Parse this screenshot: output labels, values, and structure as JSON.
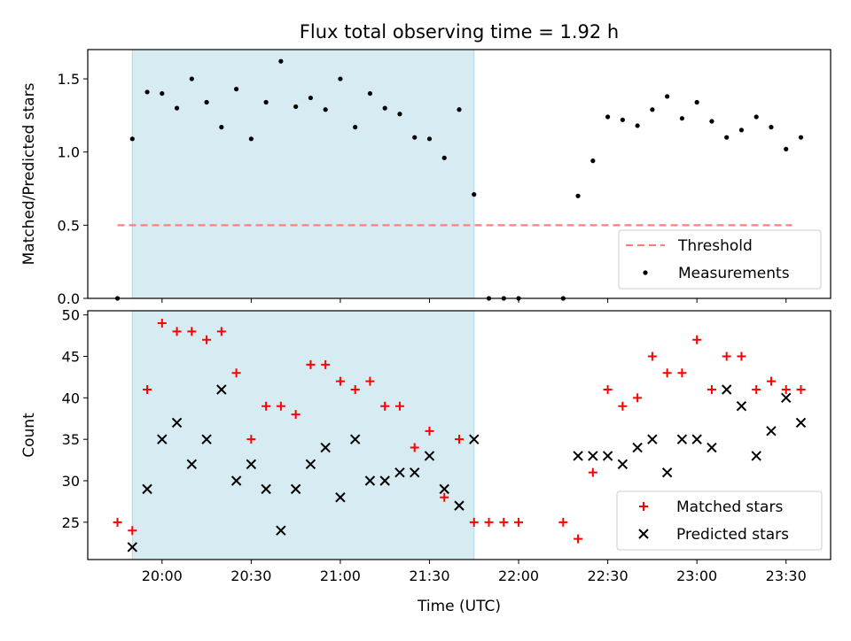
{
  "title": "Flux total observing time = 1.92 h",
  "colors": {
    "shade": "#add8e6",
    "threshold": "#ff7f7f",
    "measurement": "#000000",
    "matched": "#ff0000",
    "predicted": "#000000"
  },
  "chart_data": [
    {
      "type": "scatter",
      "ylabel": "Matched/Predicted stars",
      "ylim": [
        0,
        1.7
      ],
      "yticks": [
        0.0,
        0.5,
        1.0,
        1.5
      ],
      "ytick_labels": [
        "0.0",
        "0.5",
        "1.0",
        "1.5"
      ],
      "xlim": [
        "19:35",
        "23:45"
      ],
      "shaded_span": [
        "19:50",
        "21:45"
      ],
      "threshold": {
        "value": 0.5,
        "x_range": [
          "19:45",
          "23:32"
        ]
      },
      "legend": {
        "position": "lower right",
        "entries": [
          "Threshold",
          "Measurements"
        ]
      },
      "series": [
        {
          "name": "Measurements",
          "x": [
            "19:45",
            "19:50",
            "19:55",
            "20:00",
            "20:05",
            "20:10",
            "20:15",
            "20:20",
            "20:25",
            "20:30",
            "20:35",
            "20:40",
            "20:45",
            "20:50",
            "20:55",
            "21:00",
            "21:05",
            "21:10",
            "21:15",
            "21:20",
            "21:25",
            "21:30",
            "21:35",
            "21:40",
            "21:45",
            "21:50",
            "21:55",
            "22:00",
            "22:15",
            "22:20",
            "22:25",
            "22:30",
            "22:35",
            "22:40",
            "22:45",
            "22:50",
            "22:55",
            "23:00",
            "23:05",
            "23:10",
            "23:15",
            "23:20",
            "23:25",
            "23:30",
            "23:35"
          ],
          "y": [
            0.0,
            1.09,
            1.41,
            1.4,
            1.3,
            1.5,
            1.34,
            1.17,
            1.43,
            1.09,
            1.34,
            1.62,
            1.31,
            1.37,
            1.29,
            1.5,
            1.17,
            1.4,
            1.3,
            1.26,
            1.1,
            1.09,
            0.96,
            1.29,
            0.71,
            0.0,
            0.0,
            0.0,
            0.0,
            0.7,
            0.94,
            1.24,
            1.22,
            1.18,
            1.29,
            1.38,
            1.23,
            1.34,
            1.21,
            1.1,
            1.15,
            1.24,
            1.17,
            1.02,
            1.1
          ]
        }
      ]
    },
    {
      "type": "scatter",
      "xlabel": "Time (UTC)",
      "ylabel": "Count",
      "ylim": [
        20.5,
        50.5
      ],
      "yticks": [
        25,
        30,
        35,
        40,
        45,
        50
      ],
      "ytick_labels": [
        "25",
        "30",
        "35",
        "40",
        "45",
        "50"
      ],
      "xlim": [
        "19:35",
        "23:45"
      ],
      "xticks": [
        "20:00",
        "20:30",
        "21:00",
        "21:30",
        "22:00",
        "22:30",
        "23:00",
        "23:30"
      ],
      "xtick_labels": [
        "20:00",
        "20:30",
        "21:00",
        "21:30",
        "22:00",
        "22:30",
        "23:00",
        "23:30"
      ],
      "shaded_span": [
        "19:50",
        "21:45"
      ],
      "legend": {
        "position": "lower right",
        "entries": [
          "Matched stars",
          "Predicted stars"
        ]
      },
      "series": [
        {
          "name": "Matched stars",
          "marker": "plus",
          "x": [
            "19:45",
            "19:50",
            "19:55",
            "20:00",
            "20:05",
            "20:10",
            "20:15",
            "20:20",
            "20:25",
            "20:30",
            "20:35",
            "20:40",
            "20:45",
            "20:50",
            "20:55",
            "21:00",
            "21:05",
            "21:10",
            "21:15",
            "21:20",
            "21:25",
            "21:30",
            "21:35",
            "21:40",
            "21:45",
            "21:50",
            "21:55",
            "22:00",
            "22:15",
            "22:20",
            "22:25",
            "22:30",
            "22:35",
            "22:40",
            "22:45",
            "22:50",
            "22:55",
            "23:00",
            "23:05",
            "23:10",
            "23:15",
            "23:20",
            "23:25",
            "23:30",
            "23:35"
          ],
          "y": [
            25,
            24,
            41,
            49,
            48,
            48,
            47,
            48,
            43,
            35,
            39,
            39,
            38,
            44,
            44,
            42,
            41,
            42,
            39,
            39,
            34,
            36,
            28,
            35,
            25,
            25,
            25,
            25,
            25,
            23,
            31,
            41,
            39,
            40,
            45,
            43,
            43,
            47,
            41,
            45,
            45,
            41,
            42,
            41,
            41
          ]
        },
        {
          "name": "Predicted stars",
          "marker": "x",
          "x": [
            "19:50",
            "19:55",
            "20:00",
            "20:05",
            "20:10",
            "20:15",
            "20:20",
            "20:25",
            "20:30",
            "20:35",
            "20:40",
            "20:45",
            "20:50",
            "20:55",
            "21:00",
            "21:05",
            "21:10",
            "21:15",
            "21:20",
            "21:25",
            "21:30",
            "21:35",
            "21:40",
            "21:45",
            "22:20",
            "22:25",
            "22:30",
            "22:35",
            "22:40",
            "22:45",
            "22:50",
            "22:55",
            "23:00",
            "23:05",
            "23:10",
            "23:15",
            "23:20",
            "23:25",
            "23:30",
            "23:35"
          ],
          "y": [
            22,
            29,
            35,
            37,
            32,
            35,
            41,
            30,
            32,
            29,
            24,
            29,
            32,
            34,
            28,
            35,
            30,
            30,
            31,
            31,
            33,
            29,
            27,
            35,
            33,
            33,
            33,
            32,
            34,
            35,
            31,
            35,
            35,
            34,
            41,
            39,
            33,
            36,
            40,
            37
          ]
        }
      ]
    }
  ]
}
